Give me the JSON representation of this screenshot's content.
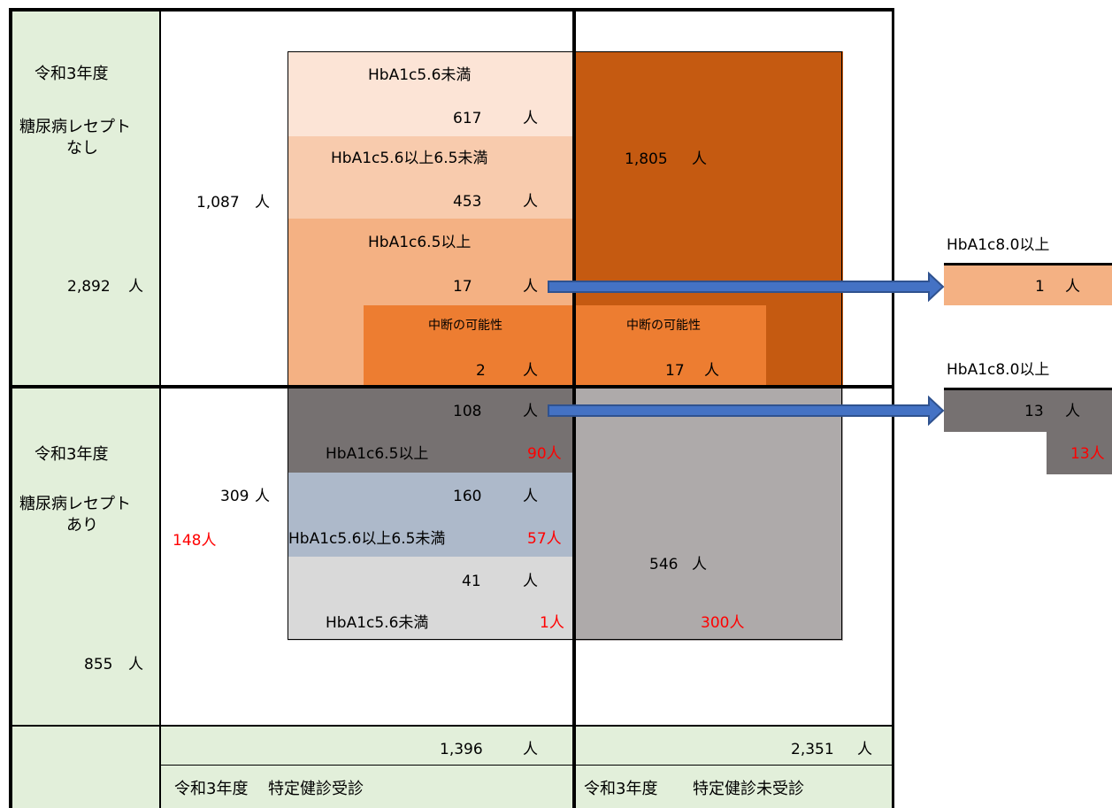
{
  "top_row": {
    "year": "令和3年度",
    "category_line1": "糖尿病レセプト",
    "category_line2": "なし",
    "total": "2,892",
    "total_unit": "人",
    "screened_total": "1,087",
    "screened_unit": "人",
    "bands": [
      {
        "label": "HbA1c5.6未満",
        "count": "617",
        "unit": "人"
      },
      {
        "label": "HbA1c5.6以上6.5未満",
        "count": "453",
        "unit": "人"
      },
      {
        "label": "HbA1c6.5以上",
        "count": "17",
        "unit": "人"
      }
    ],
    "interruption_screened": {
      "label": "中断の可能性",
      "count": "2",
      "unit": "人"
    },
    "unscreened": {
      "count": "1,805",
      "unit": "人"
    },
    "interruption_unscreened": {
      "label": "中断の可能性",
      "count": "17",
      "unit": "人"
    },
    "callout": {
      "title": "HbA1c8.0以上",
      "count": "1",
      "unit": "人"
    }
  },
  "bottom_row": {
    "year": "令和3年度",
    "category_line1": "糖尿病レセプト",
    "category_line2": "あり",
    "total": "855",
    "total_unit": "人",
    "screened_total": "309",
    "screened_unit": "人",
    "screened_red": "148人",
    "bands": [
      {
        "count": "108",
        "unit": "人",
        "label": "HbA1c6.5以上",
        "red": "90人"
      },
      {
        "count": "160",
        "unit": "人",
        "label": "HbA1c5.6以上6.5未満",
        "red": "57人"
      },
      {
        "count": "41",
        "unit": "人",
        "label": "HbA1c5.6未満",
        "red": "1人"
      }
    ],
    "unscreened": {
      "count": "546",
      "unit": "人",
      "red": "300人"
    },
    "callout": {
      "title": "HbA1c8.0以上",
      "count": "13",
      "unit": "人",
      "red": "13人"
    }
  },
  "footer": {
    "screened_total": "1,396",
    "screened_unit": "人",
    "unscreened_total": "2,351",
    "unscreened_unit": "人",
    "screened_year": "令和3年度",
    "screened_label": "特定健診受診",
    "unscreened_year": "令和3年度",
    "unscreened_label": "特定健診未受診"
  },
  "colors": {
    "side_panel": "#e2efda",
    "band1": "#fce4d6",
    "band2": "#f8cbad",
    "band3": "#f4b183",
    "interruption": "#ed7d31",
    "unscreened_top": "#c55a11",
    "band_b1": "#767171",
    "band_b2": "#adb9ca",
    "band_b3": "#d9d9d9",
    "unscreened_bottom": "#aeaaaa",
    "arrow": "#4472c4",
    "red": "#ff0000"
  }
}
